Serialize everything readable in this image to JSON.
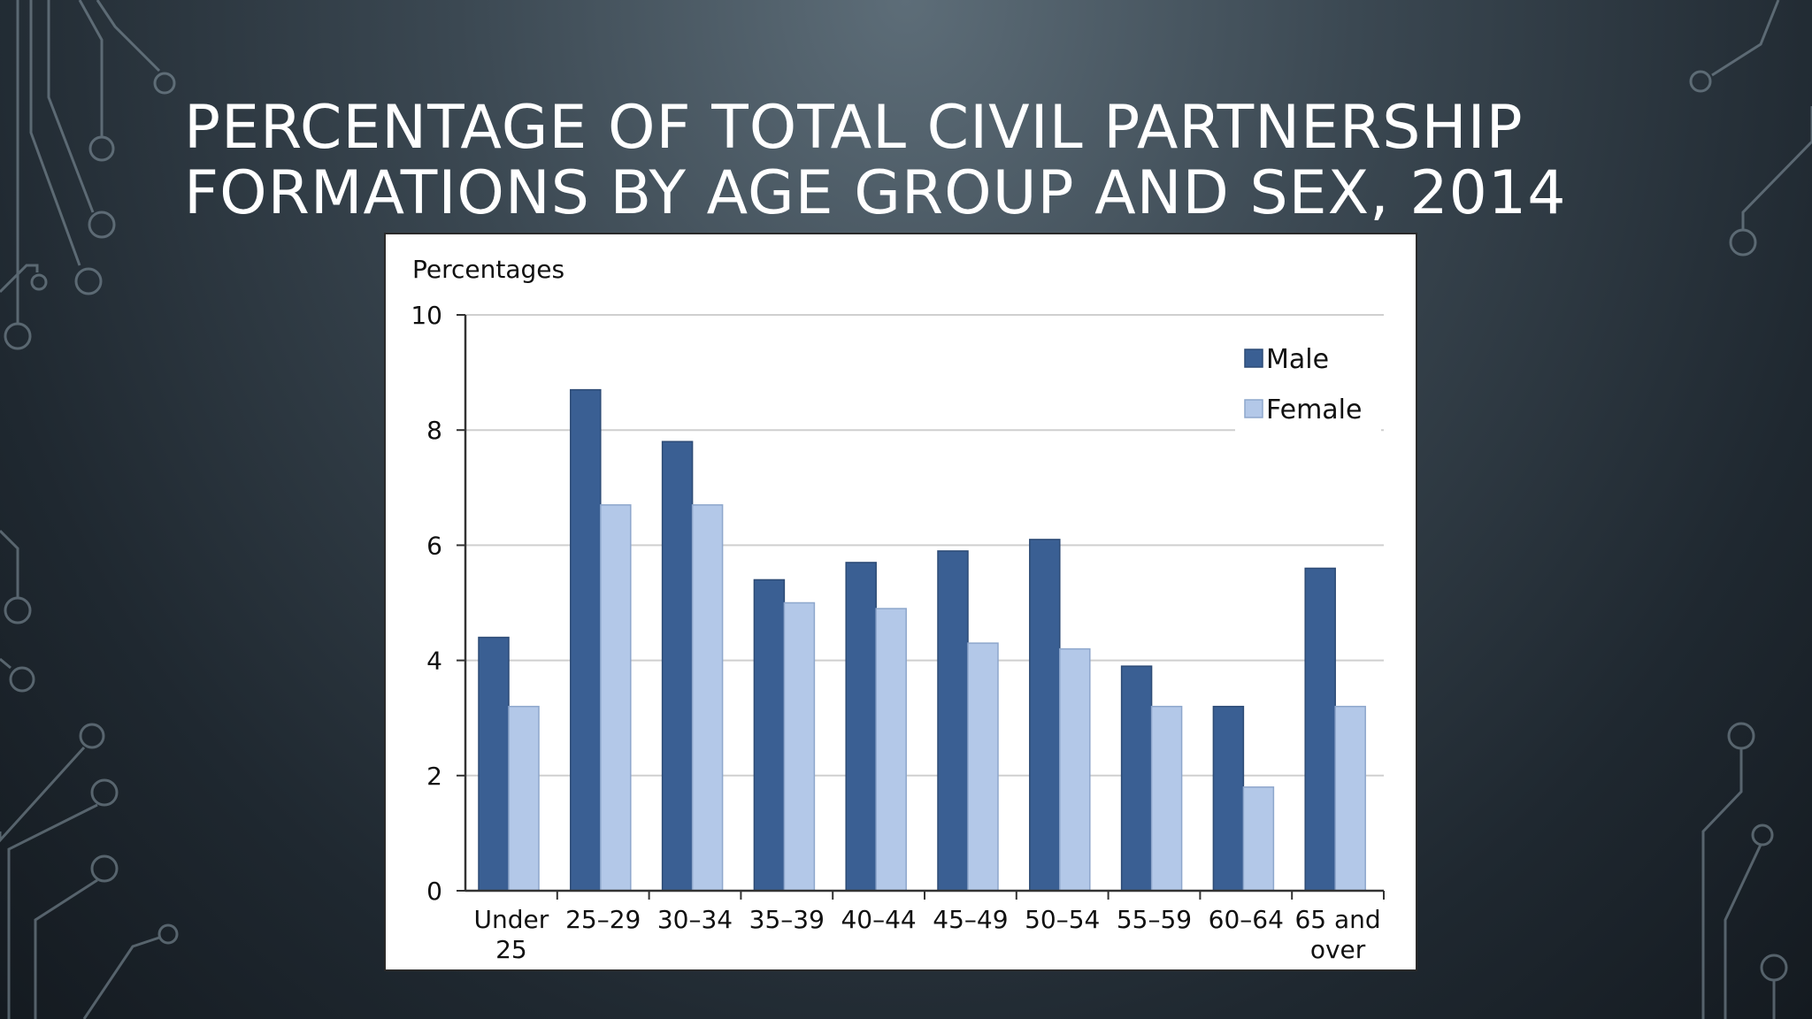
{
  "slide": {
    "title_line1": "PERCENTAGE OF TOTAL CIVIL PARTNERSHIP",
    "title_line2": "FORMATIONS BY AGE GROUP AND SEX, 2014"
  },
  "colors": {
    "male": "#3a5f93",
    "female": "#b3c8e8",
    "gridline": "#cfcfcf",
    "axis": "#333333"
  },
  "chart_data": {
    "type": "bar",
    "title": "",
    "ylabel": "Percentages",
    "xlabel": "",
    "ylim": [
      0,
      10
    ],
    "yticks": [
      0,
      2,
      4,
      6,
      8,
      10
    ],
    "grid": true,
    "legend_position": "top-right",
    "categories": [
      [
        "Under",
        "25"
      ],
      [
        "25–29"
      ],
      [
        "30–34"
      ],
      [
        "35–39"
      ],
      [
        "40–44"
      ],
      [
        "45–49"
      ],
      [
        "50–54"
      ],
      [
        "55–59"
      ],
      [
        "60–64"
      ],
      [
        "65 and",
        "over"
      ]
    ],
    "series": [
      {
        "name": "Male",
        "values": [
          4.4,
          8.7,
          7.8,
          5.4,
          5.7,
          5.9,
          6.1,
          3.9,
          3.2,
          5.6
        ]
      },
      {
        "name": "Female",
        "values": [
          3.2,
          6.7,
          6.7,
          5.0,
          4.9,
          4.3,
          4.2,
          3.2,
          1.8,
          3.2
        ]
      }
    ]
  }
}
